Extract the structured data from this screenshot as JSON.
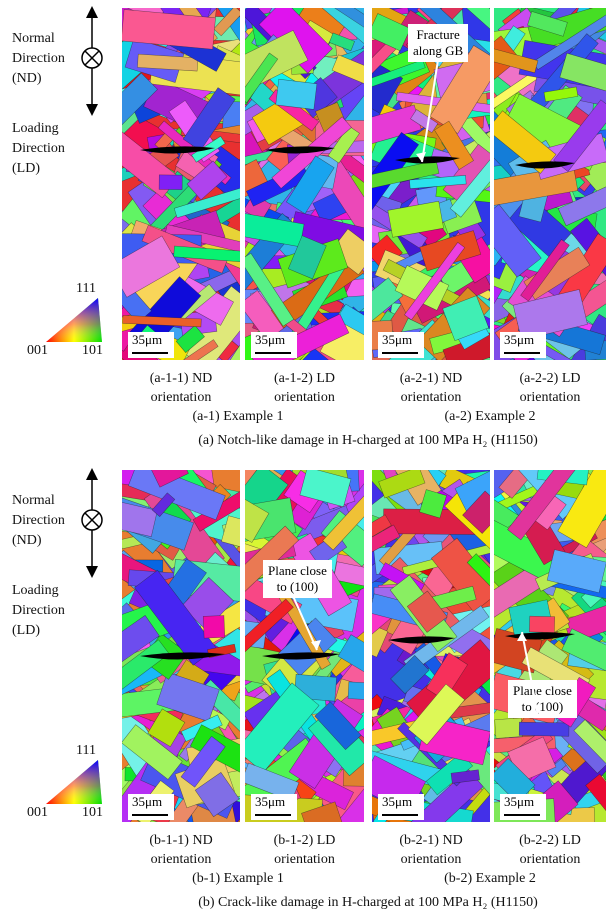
{
  "panels": [
    {
      "normal_direction": [
        "Normal",
        "Direction",
        "(ND)"
      ],
      "loading_direction": [
        "Loading",
        "Direction",
        "(LD)"
      ],
      "legend": {
        "top": "111",
        "left": "001",
        "right": "101"
      },
      "maps": [
        {
          "scale_bar": "35μm",
          "caption": [
            "(a-1-1) ND",
            "orientation"
          ]
        },
        {
          "scale_bar": "35μm",
          "caption": [
            "(a-1-2) LD",
            "orientation"
          ]
        },
        {
          "scale_bar": "35μm",
          "caption": [
            "(a-2-1) ND",
            "orientation"
          ]
        },
        {
          "scale_bar": "35μm",
          "caption": [
            "(a-2-2) LD",
            "orientation"
          ]
        }
      ],
      "examples": [
        "(a-1) Example 1",
        "(a-2) Example 2"
      ],
      "annotations": [
        {
          "lines": [
            "Fracture",
            "along GB"
          ]
        }
      ],
      "caption": "(a) Notch-like damage in H-charged at 100 MPa H₂ (H1150)"
    },
    {
      "normal_direction": [
        "Normal",
        "Direction",
        "(ND)"
      ],
      "loading_direction": [
        "Loading",
        "Direction",
        "(LD)"
      ],
      "legend": {
        "top": "111",
        "left": "001",
        "right": "101"
      },
      "maps": [
        {
          "scale_bar": "35μm",
          "caption": [
            "(b-1-1) ND",
            "orientation"
          ]
        },
        {
          "scale_bar": "35μm",
          "caption": [
            "(b-1-2) LD",
            "orientation"
          ]
        },
        {
          "scale_bar": "35μm",
          "caption": [
            "(b-2-1) ND",
            "orientation"
          ]
        },
        {
          "scale_bar": "35μm",
          "caption": [
            "(b-2-2) LD",
            "orientation"
          ]
        }
      ],
      "examples": [
        "(b-1) Example 1",
        "(b-2) Example 2"
      ],
      "annotations": [
        {
          "lines": [
            "Plane close",
            "to (100)"
          ]
        },
        {
          "lines": [
            "Plane close",
            "to (100)"
          ]
        }
      ],
      "caption": "(b) Crack-like damage in H-charged at 100 MPa H₂ (H1150)"
    }
  ]
}
